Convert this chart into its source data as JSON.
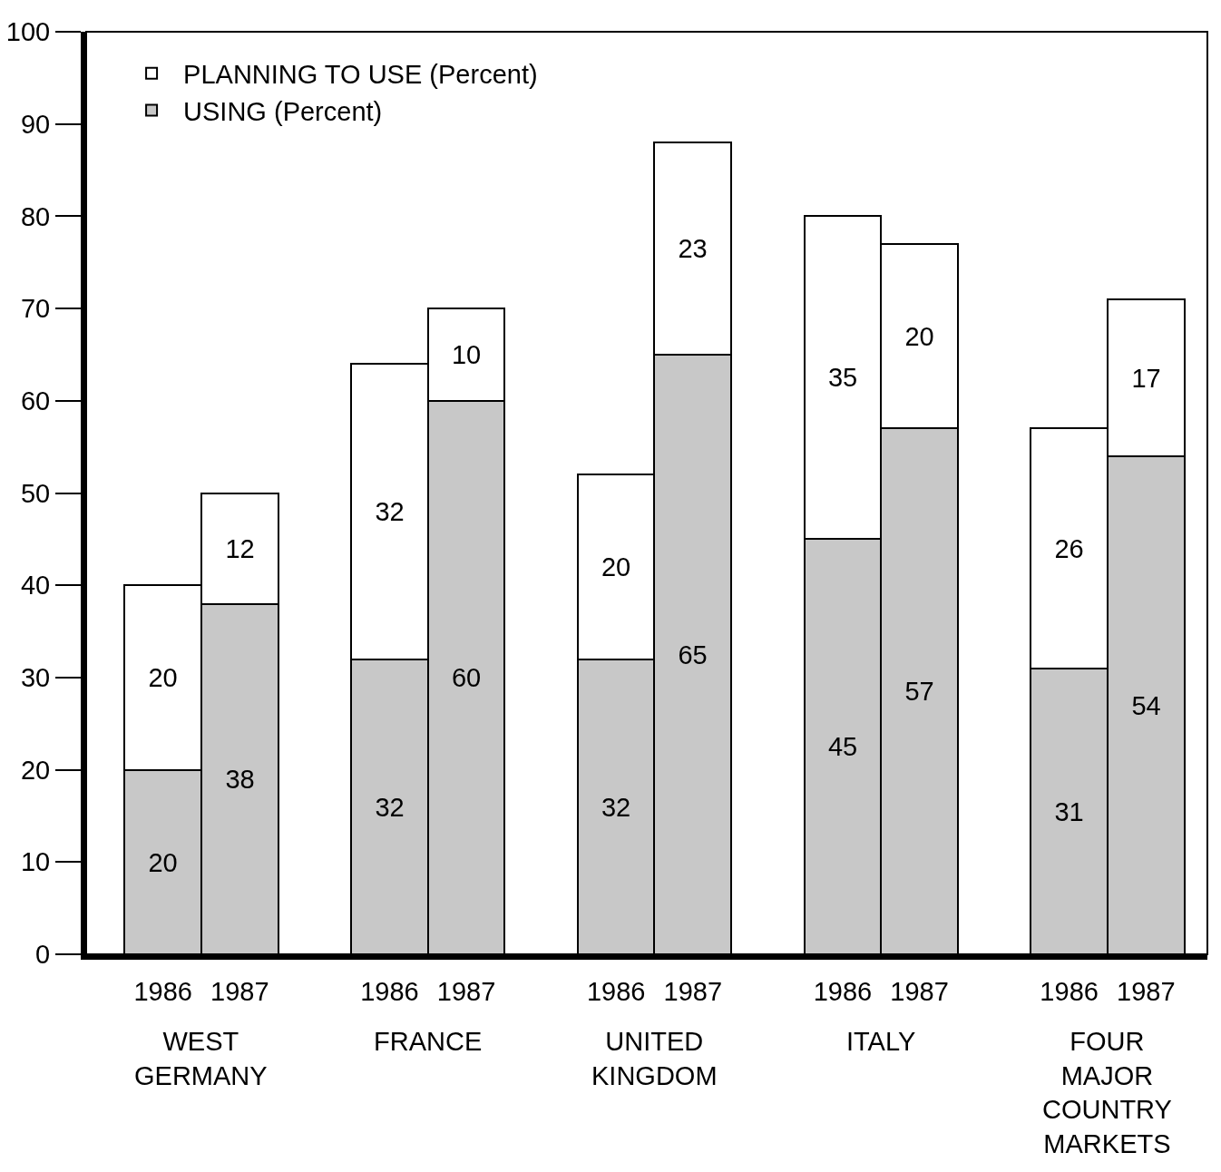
{
  "chart_data": {
    "type": "bar",
    "stacked": true,
    "categories": [
      "1986",
      "1987",
      "1986",
      "1987",
      "1986",
      "1987",
      "1986",
      "1987",
      "1986",
      "1987"
    ],
    "series": [
      {
        "name": "USING (Percent)",
        "color": "#c8c8c8",
        "values": [
          20,
          38,
          32,
          60,
          32,
          65,
          45,
          57,
          31,
          54
        ]
      },
      {
        "name": "PLANNING TO USE (Percent)",
        "color": "#ffffff",
        "values": [
          20,
          12,
          32,
          10,
          20,
          23,
          35,
          20,
          26,
          17
        ]
      }
    ],
    "data_labels": true,
    "ylim": [
      0,
      100
    ],
    "yticks": [
      0,
      10,
      20,
      30,
      40,
      50,
      60,
      70,
      80,
      90,
      100
    ],
    "grid": false,
    "legend": "top left",
    "annotations": [
      "WEST\nGERMANY",
      "FRANCE",
      "UNITED\nKINGDOM",
      "ITALY",
      "FOUR\nMAJOR\nCOUNTRY\nMARKETS"
    ]
  }
}
